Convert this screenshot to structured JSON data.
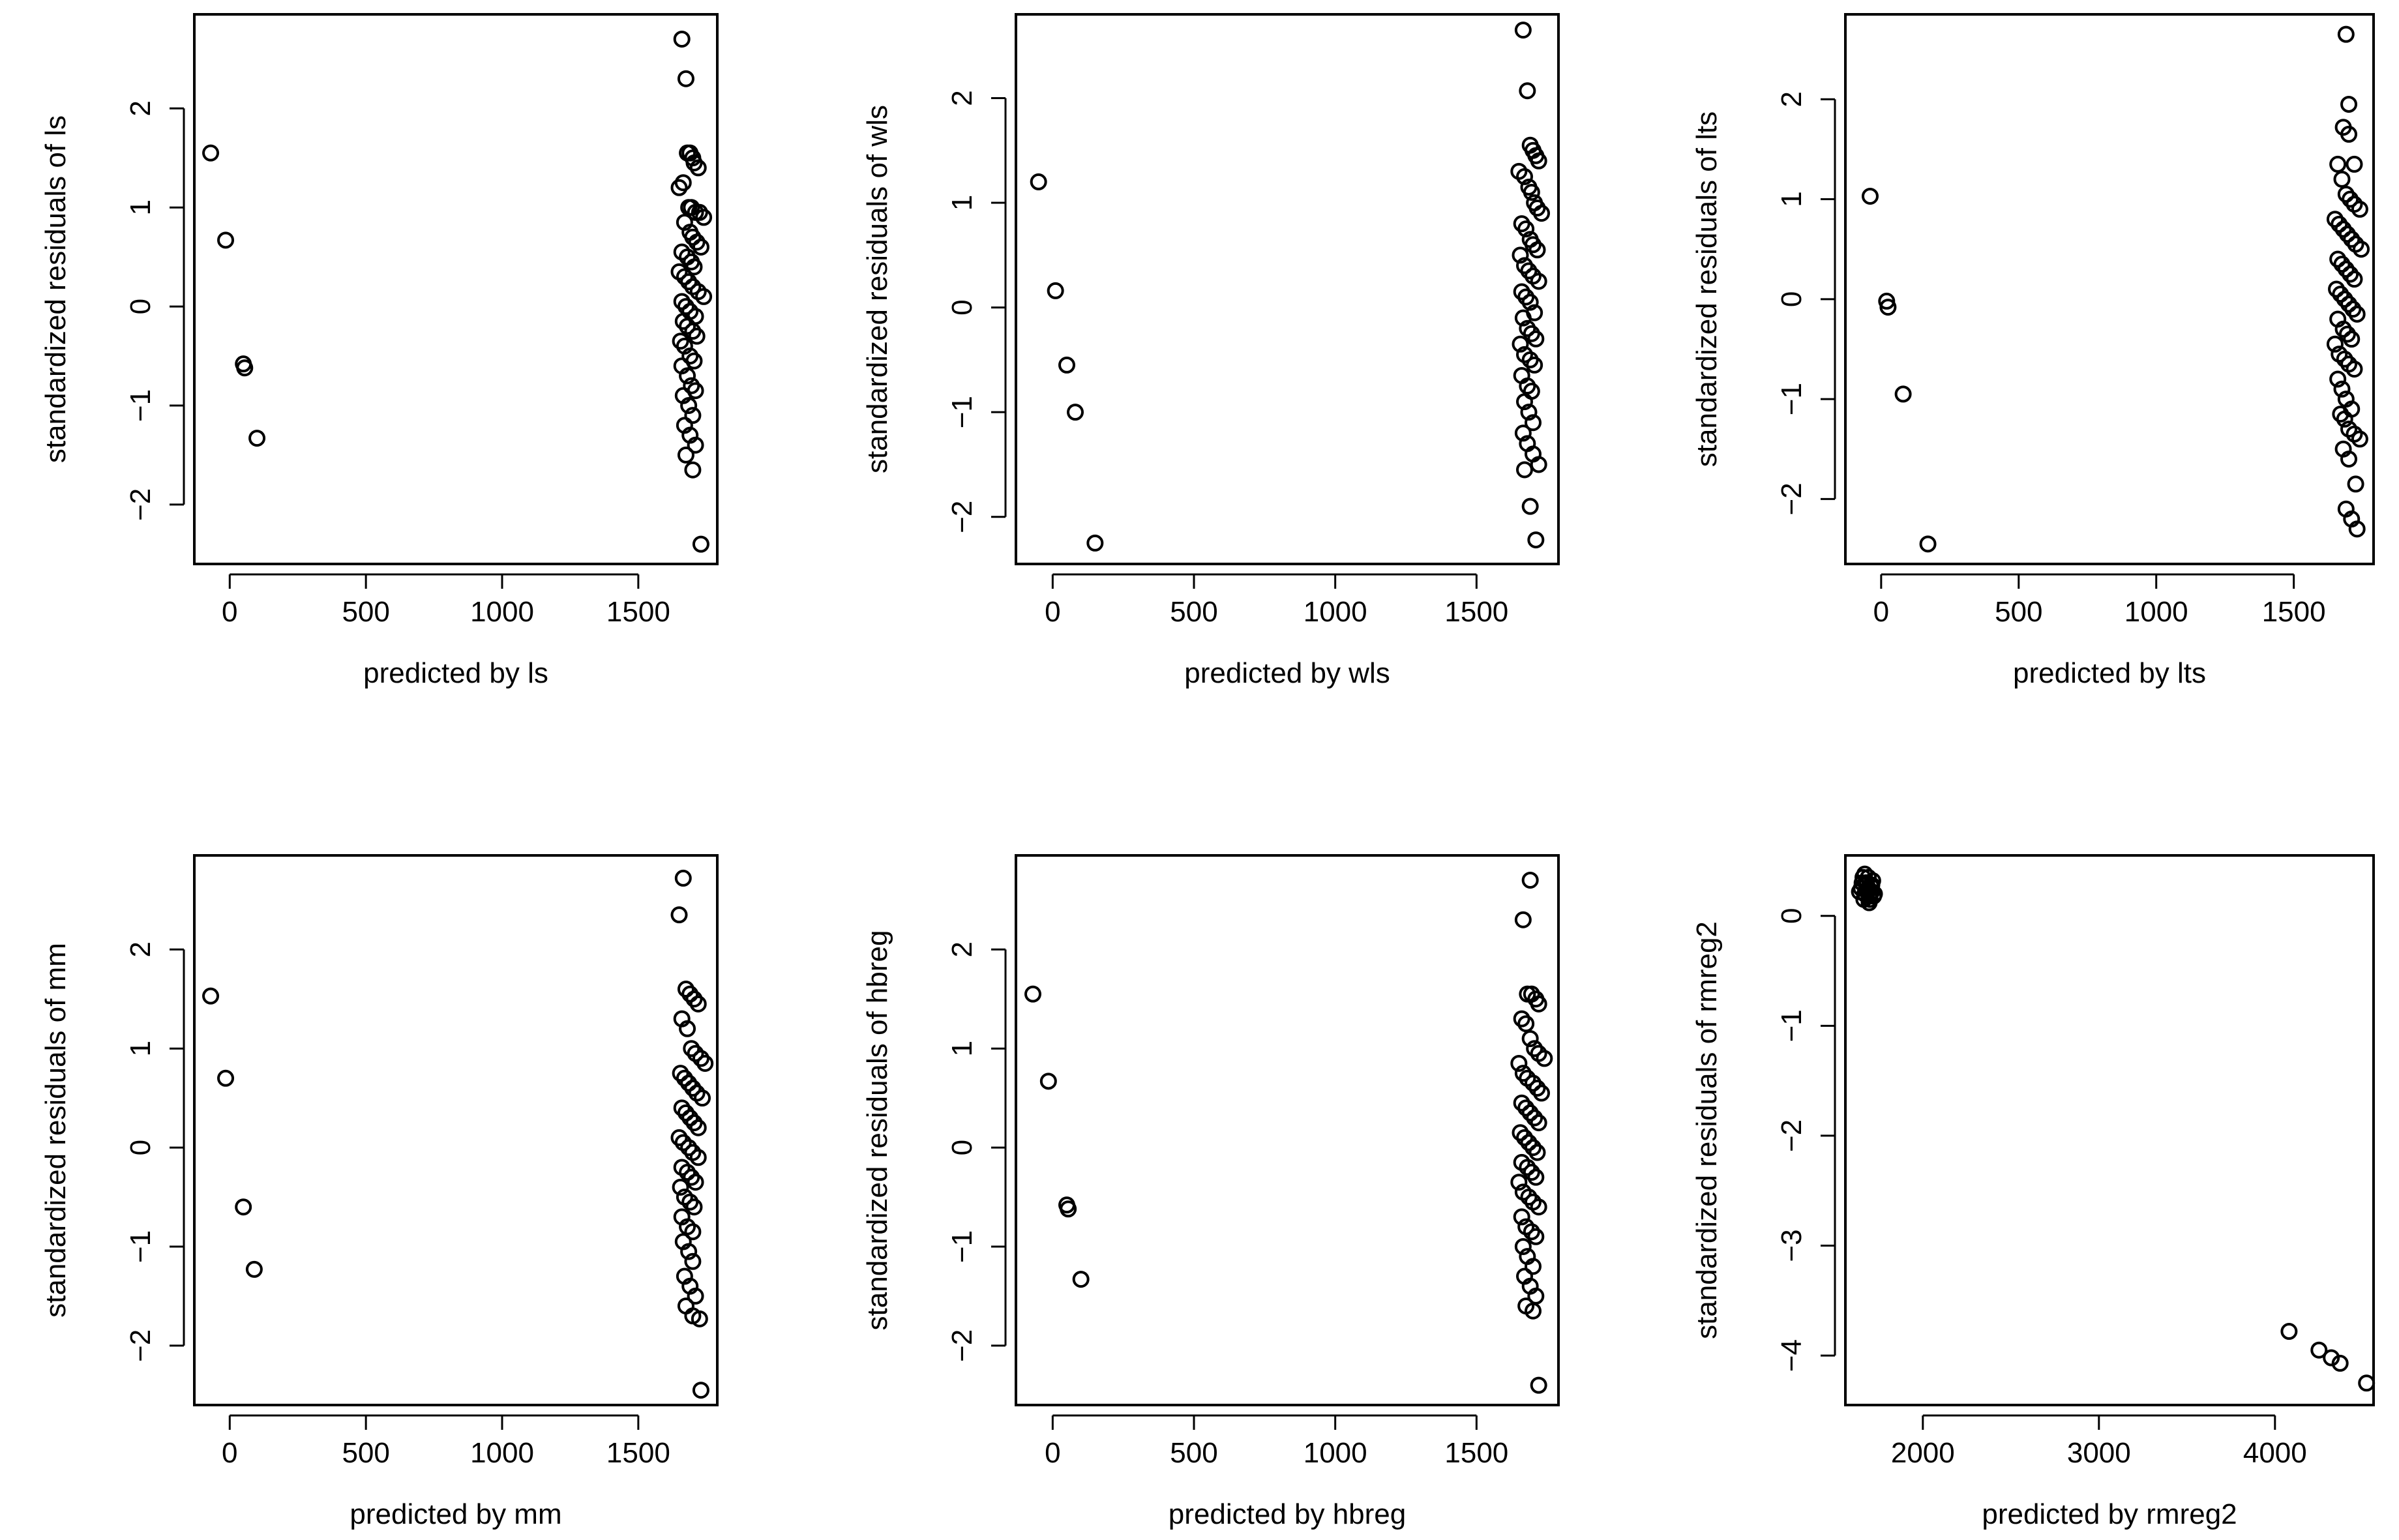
{
  "chart_data": [
    {
      "type": "scatter",
      "xlabel": "predicted by ls",
      "ylabel": "standardized residuals of ls",
      "xlim": [
        -130,
        1790
      ],
      "ylim": [
        -2.6,
        2.95
      ],
      "xticks": [
        0,
        500,
        1000,
        1500
      ],
      "yticks": [
        -2,
        -1,
        0,
        1,
        2
      ],
      "x": [
        -70,
        -15,
        50,
        55,
        100,
        1660,
        1675,
        1680,
        1690,
        1700,
        1705,
        1720,
        1650,
        1665,
        1685,
        1695,
        1710,
        1725,
        1740,
        1670,
        1690,
        1700,
        1715,
        1730,
        1660,
        1680,
        1695,
        1705,
        1650,
        1670,
        1685,
        1700,
        1720,
        1740,
        1660,
        1675,
        1690,
        1710,
        1665,
        1680,
        1700,
        1715,
        1655,
        1670,
        1690,
        1705,
        1660,
        1680,
        1695,
        1710,
        1665,
        1685,
        1700,
        1670,
        1690,
        1710,
        1675,
        1700,
        1730
      ],
      "y": [
        1.55,
        0.67,
        -0.58,
        -0.62,
        -1.33,
        2.7,
        2.3,
        1.55,
        1.55,
        1.5,
        1.45,
        1.4,
        1.2,
        1.25,
        1.0,
        1.0,
        0.95,
        0.95,
        0.9,
        0.85,
        0.75,
        0.7,
        0.65,
        0.6,
        0.55,
        0.5,
        0.45,
        0.4,
        0.35,
        0.3,
        0.25,
        0.2,
        0.15,
        0.1,
        0.05,
        0.0,
        -0.05,
        -0.1,
        -0.15,
        -0.2,
        -0.25,
        -0.3,
        -0.35,
        -0.4,
        -0.5,
        -0.55,
        -0.6,
        -0.7,
        -0.8,
        -0.85,
        -0.9,
        -1.0,
        -1.1,
        -1.2,
        -1.3,
        -1.4,
        -1.5,
        -1.65,
        -2.4
      ]
    },
    {
      "type": "scatter",
      "xlabel": "predicted by wls",
      "ylabel": "standardized residuals of wls",
      "xlim": [
        -130,
        1790
      ],
      "ylim": [
        -2.45,
        2.8
      ],
      "xticks": [
        0,
        500,
        1000,
        1500
      ],
      "yticks": [
        -2,
        -1,
        0,
        1,
        2
      ],
      "x": [
        -50,
        10,
        50,
        80,
        150,
        1665,
        1680,
        1690,
        1700,
        1710,
        1720,
        1650,
        1670,
        1685,
        1695,
        1705,
        1715,
        1730,
        1660,
        1675,
        1690,
        1700,
        1715,
        1655,
        1670,
        1685,
        1700,
        1720,
        1660,
        1675,
        1690,
        1705,
        1665,
        1680,
        1695,
        1710,
        1655,
        1670,
        1690,
        1705,
        1660,
        1680,
        1695,
        1670,
        1685,
        1700,
        1665,
        1680,
        1700,
        1720,
        1670,
        1690,
        1710
      ],
      "y": [
        1.2,
        0.16,
        -0.55,
        -1.0,
        -2.25,
        2.65,
        2.07,
        1.55,
        1.5,
        1.45,
        1.4,
        1.3,
        1.25,
        1.15,
        1.1,
        1.0,
        0.95,
        0.9,
        0.8,
        0.75,
        0.65,
        0.6,
        0.55,
        0.5,
        0.4,
        0.35,
        0.3,
        0.25,
        0.15,
        0.1,
        0.05,
        -0.05,
        -0.1,
        -0.2,
        -0.25,
        -0.3,
        -0.35,
        -0.45,
        -0.5,
        -0.55,
        -0.65,
        -0.75,
        -0.8,
        -0.9,
        -1.0,
        -1.1,
        -1.2,
        -1.3,
        -1.4,
        -1.5,
        -1.55,
        -1.9,
        -2.22
      ]
    },
    {
      "type": "scatter",
      "xlabel": "predicted by lts",
      "ylabel": "standardized residuals of lts",
      "xlim": [
        -130,
        1790
      ],
      "ylim": [
        -2.65,
        2.85
      ],
      "xticks": [
        0,
        500,
        1000,
        1500
      ],
      "yticks": [
        -2,
        -1,
        0,
        1,
        2
      ],
      "x": [
        -40,
        20,
        25,
        80,
        170,
        1690,
        1700,
        1680,
        1700,
        1720,
        1660,
        1675,
        1690,
        1705,
        1720,
        1740,
        1650,
        1665,
        1680,
        1695,
        1710,
        1725,
        1745,
        1660,
        1675,
        1690,
        1705,
        1720,
        1655,
        1670,
        1685,
        1700,
        1715,
        1730,
        1660,
        1680,
        1695,
        1710,
        1650,
        1665,
        1685,
        1700,
        1720,
        1660,
        1675,
        1690,
        1710,
        1670,
        1685,
        1700,
        1720,
        1740,
        1680,
        1700,
        1725,
        1690,
        1710,
        1730
      ],
      "y": [
        1.03,
        -0.02,
        -0.08,
        -0.95,
        -2.45,
        2.65,
        1.95,
        1.72,
        1.65,
        1.35,
        1.35,
        1.2,
        1.05,
        1.0,
        0.95,
        0.9,
        0.8,
        0.75,
        0.7,
        0.65,
        0.6,
        0.55,
        0.5,
        0.4,
        0.35,
        0.3,
        0.25,
        0.2,
        0.1,
        0.05,
        0.0,
        -0.05,
        -0.1,
        -0.15,
        -0.2,
        -0.3,
        -0.35,
        -0.4,
        -0.45,
        -0.55,
        -0.6,
        -0.65,
        -0.7,
        -0.8,
        -0.9,
        -1.0,
        -1.1,
        -1.15,
        -1.2,
        -1.3,
        -1.35,
        -1.4,
        -1.5,
        -1.6,
        -1.85,
        -2.1,
        -2.2,
        -2.3
      ]
    },
    {
      "type": "scatter",
      "xlabel": "predicted by mm",
      "ylabel": "standardized residuals of mm",
      "xlim": [
        -130,
        1790
      ],
      "ylim": [
        -2.6,
        2.95
      ],
      "xticks": [
        0,
        500,
        1000,
        1500
      ],
      "yticks": [
        -2,
        -1,
        0,
        1,
        2
      ],
      "x": [
        -70,
        -15,
        50,
        90,
        1665,
        1650,
        1675,
        1690,
        1705,
        1720,
        1660,
        1680,
        1695,
        1710,
        1730,
        1745,
        1655,
        1670,
        1685,
        1700,
        1715,
        1735,
        1660,
        1675,
        1690,
        1705,
        1720,
        1650,
        1665,
        1685,
        1700,
        1720,
        1660,
        1680,
        1695,
        1710,
        1655,
        1670,
        1690,
        1705,
        1660,
        1680,
        1700,
        1665,
        1685,
        1700,
        1670,
        1690,
        1710,
        1675,
        1700,
        1725,
        1730
      ],
      "y": [
        1.53,
        0.7,
        -0.6,
        -1.23,
        2.72,
        2.35,
        1.6,
        1.55,
        1.5,
        1.45,
        1.3,
        1.2,
        1.0,
        0.95,
        0.9,
        0.85,
        0.75,
        0.7,
        0.65,
        0.6,
        0.55,
        0.5,
        0.4,
        0.35,
        0.3,
        0.25,
        0.2,
        0.1,
        0.05,
        0.0,
        -0.05,
        -0.1,
        -0.2,
        -0.25,
        -0.3,
        -0.35,
        -0.4,
        -0.5,
        -0.55,
        -0.6,
        -0.7,
        -0.8,
        -0.85,
        -0.95,
        -1.05,
        -1.15,
        -1.3,
        -1.4,
        -1.5,
        -1.6,
        -1.7,
        -1.73,
        -2.45
      ]
    },
    {
      "type": "scatter",
      "xlabel": "predicted by hbreg",
      "ylabel": "standardized residuals of hbreg",
      "xlim": [
        -130,
        1790
      ],
      "ylim": [
        -2.6,
        2.95
      ],
      "xticks": [
        0,
        500,
        1000,
        1500
      ],
      "yticks": [
        -2,
        -1,
        0,
        1,
        2
      ],
      "x": [
        -70,
        -15,
        50,
        55,
        100,
        1690,
        1665,
        1680,
        1695,
        1710,
        1720,
        1660,
        1675,
        1690,
        1705,
        1720,
        1740,
        1650,
        1665,
        1680,
        1700,
        1715,
        1730,
        1660,
        1675,
        1690,
        1705,
        1720,
        1655,
        1670,
        1685,
        1700,
        1715,
        1660,
        1680,
        1695,
        1710,
        1650,
        1665,
        1685,
        1700,
        1720,
        1660,
        1675,
        1695,
        1710,
        1665,
        1680,
        1700,
        1670,
        1690,
        1710,
        1675,
        1700,
        1720
      ],
      "y": [
        1.55,
        0.67,
        -0.58,
        -0.62,
        -1.33,
        2.7,
        2.3,
        1.55,
        1.55,
        1.5,
        1.45,
        1.3,
        1.25,
        1.1,
        1.0,
        0.95,
        0.9,
        0.85,
        0.75,
        0.7,
        0.65,
        0.6,
        0.55,
        0.45,
        0.4,
        0.35,
        0.3,
        0.25,
        0.15,
        0.1,
        0.05,
        0.0,
        -0.05,
        -0.15,
        -0.2,
        -0.25,
        -0.3,
        -0.35,
        -0.45,
        -0.5,
        -0.55,
        -0.6,
        -0.7,
        -0.8,
        -0.85,
        -0.9,
        -1.0,
        -1.1,
        -1.2,
        -1.3,
        -1.4,
        -1.5,
        -1.6,
        -1.65,
        -2.4
      ]
    },
    {
      "type": "scatter",
      "xlabel": "predicted by rmreg2",
      "ylabel": "standardized residuals of rmreg2",
      "xlim": [
        1560,
        4560
      ],
      "ylim": [
        -4.45,
        0.55
      ],
      "xticks": [
        2000,
        3000,
        4000
      ],
      "yticks": [
        -4,
        -3,
        -2,
        -1,
        0
      ],
      "x": [
        1640,
        1660,
        1670,
        1680,
        1690,
        1700,
        1710,
        1720,
        1650,
        1665,
        1675,
        1685,
        1695,
        1705,
        1715,
        1725,
        1655,
        1670,
        1690,
        1700,
        1710,
        1680,
        1695,
        4080,
        4250,
        4320,
        4370,
        4520
      ],
      "y": [
        0.22,
        0.35,
        0.38,
        0.3,
        0.25,
        0.2,
        0.28,
        0.18,
        0.25,
        0.15,
        0.3,
        0.22,
        0.12,
        0.27,
        0.32,
        0.2,
        0.3,
        0.2,
        0.35,
        0.15,
        0.22,
        0.28,
        0.18,
        -3.78,
        -3.95,
        -4.02,
        -4.07,
        -4.25
      ]
    }
  ]
}
